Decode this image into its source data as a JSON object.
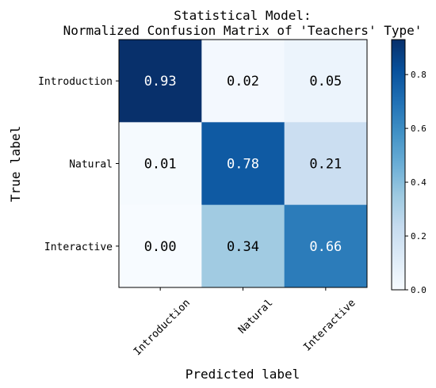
{
  "chart_data": {
    "type": "heatmap",
    "title": "Statistical Model:",
    "subtitle": "Normalized Confusion Matrix of 'Teachers' Type'",
    "xlabel": "Predicted label",
    "ylabel": "True label",
    "x_categories": [
      "Introduction",
      "Natural",
      "Interactive"
    ],
    "y_categories": [
      "Introduction",
      "Natural",
      "Interactive"
    ],
    "values": [
      [
        0.93,
        0.02,
        0.05
      ],
      [
        0.01,
        0.78,
        0.21
      ],
      [
        0.0,
        0.34,
        0.66
      ]
    ],
    "cell_labels": [
      [
        "0.93",
        "0.02",
        "0.05"
      ],
      [
        "0.01",
        "0.78",
        "0.21"
      ],
      [
        "0.00",
        "0.34",
        "0.66"
      ]
    ],
    "colormap": "Blues",
    "vmin": 0.0,
    "vmax": 0.93,
    "colorbar_ticks": [
      "0.0",
      "0.2",
      "0.4",
      "0.6",
      "0.8"
    ],
    "colorbar_tick_values": [
      0.0,
      0.2,
      0.4,
      0.6,
      0.8
    ],
    "grid": false,
    "colorbar_placement": "right"
  }
}
